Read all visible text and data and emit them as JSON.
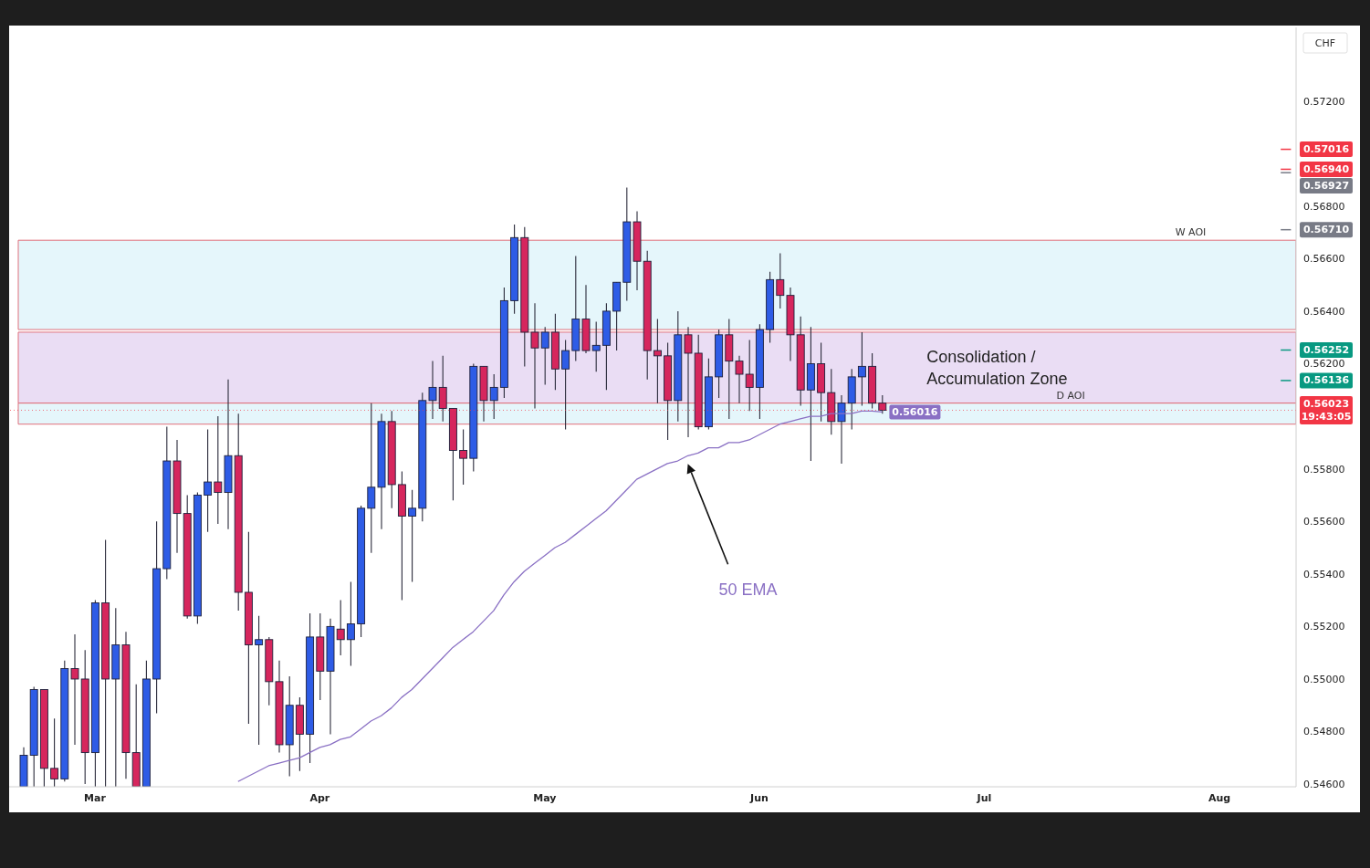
{
  "chart_data": {
    "type": "candlestick",
    "ylabel": "CHF",
    "categories": [
      null,
      null,
      null,
      null,
      null,
      null,
      null,
      "Mar",
      null,
      null,
      null,
      null,
      null,
      null,
      null,
      null,
      null,
      null,
      null,
      null,
      null,
      null,
      null,
      null,
      null,
      null,
      null,
      null,
      null,
      "Apr",
      null,
      null,
      null,
      null,
      null,
      null,
      null,
      null,
      null,
      null,
      null,
      null,
      null,
      null,
      null,
      null,
      null,
      null,
      null,
      null,
      null,
      "May",
      null,
      null,
      null,
      null,
      null,
      null,
      null,
      null,
      null,
      null,
      null,
      null,
      null,
      null,
      null,
      null,
      null,
      null,
      null,
      null,
      "Jun",
      null,
      null,
      null,
      null,
      null,
      null,
      null,
      null,
      null,
      null,
      null,
      null,
      null,
      null,
      null,
      null,
      null,
      null,
      null,
      null,
      null,
      "Jul",
      null,
      null,
      null,
      null,
      null,
      null,
      null,
      null,
      null,
      null,
      null,
      null,
      null,
      null,
      null,
      null,
      null,
      null,
      null,
      null,
      null,
      null,
      "Aug",
      null,
      null,
      null,
      null,
      null,
      null,
      null
    ],
    "ohlc": [
      [
        0.5459,
        0.5474,
        0.5459,
        0.5471
      ],
      [
        0.5471,
        0.5497,
        0.5459,
        0.5496
      ],
      [
        0.5496,
        0.5496,
        0.5459,
        0.5466
      ],
      [
        0.5466,
        0.5485,
        0.5459,
        0.5462
      ],
      [
        0.5462,
        0.5507,
        0.5461,
        0.5504
      ],
      [
        0.5504,
        0.5517,
        0.5475,
        0.55
      ],
      [
        0.55,
        0.5511,
        0.546,
        0.5472
      ],
      [
        0.5472,
        0.553,
        0.5459,
        0.5529
      ],
      [
        0.5529,
        0.5553,
        0.5459,
        0.55
      ],
      [
        0.55,
        0.5527,
        0.5459,
        0.5513
      ],
      [
        0.5513,
        0.5518,
        0.5462,
        0.5472
      ],
      [
        0.5472,
        0.5498,
        0.5459,
        0.5459
      ],
      [
        0.5459,
        0.5507,
        0.5459,
        0.55
      ],
      [
        0.55,
        0.556,
        0.5487,
        0.5542
      ],
      [
        0.5542,
        0.5596,
        0.5538,
        0.5583
      ],
      [
        0.5583,
        0.5591,
        0.5548,
        0.5563
      ],
      [
        0.5563,
        0.557,
        0.5523,
        0.5524
      ],
      [
        0.5524,
        0.5571,
        0.5521,
        0.557
      ],
      [
        0.557,
        0.5595,
        0.5556,
        0.5575
      ],
      [
        0.5575,
        0.56,
        0.5559,
        0.5571
      ],
      [
        0.5571,
        0.5614,
        0.5557,
        0.5585
      ],
      [
        0.5585,
        0.5601,
        0.5526,
        0.5533
      ],
      [
        0.5533,
        0.5556,
        0.5483,
        0.5513
      ],
      [
        0.5513,
        0.5524,
        0.5475,
        0.5515
      ],
      [
        0.5515,
        0.5516,
        0.549,
        0.5499
      ],
      [
        0.5499,
        0.5507,
        0.5472,
        0.5475
      ],
      [
        0.5475,
        0.5501,
        0.5463,
        0.549
      ],
      [
        0.549,
        0.5493,
        0.5465,
        0.5479
      ],
      [
        0.5479,
        0.5525,
        0.5468,
        0.5516
      ],
      [
        0.5516,
        0.5525,
        0.5492,
        0.5503
      ],
      [
        0.5503,
        0.5523,
        0.5479,
        0.552
      ],
      [
        0.5519,
        0.553,
        0.5509,
        0.5515
      ],
      [
        0.5515,
        0.5537,
        0.5505,
        0.5521
      ],
      [
        0.5521,
        0.5566,
        0.5516,
        0.5565
      ],
      [
        0.5565,
        0.5605,
        0.5548,
        0.5573
      ],
      [
        0.5573,
        0.5601,
        0.5557,
        0.5598
      ],
      [
        0.5598,
        0.5602,
        0.5565,
        0.5574
      ],
      [
        0.5574,
        0.5579,
        0.553,
        0.5562
      ],
      [
        0.5562,
        0.5572,
        0.5537,
        0.5565
      ],
      [
        0.5565,
        0.5609,
        0.556,
        0.5606
      ],
      [
        0.5606,
        0.5621,
        0.5599,
        0.5611
      ],
      [
        0.5611,
        0.5623,
        0.5598,
        0.5603
      ],
      [
        0.5603,
        0.5603,
        0.5568,
        0.5587
      ],
      [
        0.5587,
        0.5595,
        0.5574,
        0.5584
      ],
      [
        0.5584,
        0.562,
        0.5579,
        0.5619
      ],
      [
        0.5619,
        0.5619,
        0.5598,
        0.5606
      ],
      [
        0.5606,
        0.5616,
        0.5599,
        0.5611
      ],
      [
        0.5611,
        0.5649,
        0.5607,
        0.5644
      ],
      [
        0.5644,
        0.5673,
        0.5639,
        0.5668
      ],
      [
        0.5668,
        0.5672,
        0.5619,
        0.5632
      ],
      [
        0.5632,
        0.5643,
        0.5603,
        0.5626
      ],
      [
        0.5626,
        0.5634,
        0.5612,
        0.5632
      ],
      [
        0.5632,
        0.5639,
        0.561,
        0.5618
      ],
      [
        0.5618,
        0.5629,
        0.5595,
        0.5625
      ],
      [
        0.5625,
        0.5661,
        0.5621,
        0.5637
      ],
      [
        0.5637,
        0.565,
        0.5624,
        0.5625
      ],
      [
        0.5625,
        0.5636,
        0.5617,
        0.5627
      ],
      [
        0.5627,
        0.5643,
        0.561,
        0.564
      ],
      [
        0.564,
        0.5651,
        0.5625,
        0.5651
      ],
      [
        0.5651,
        0.5687,
        0.5644,
        0.5674
      ],
      [
        0.5674,
        0.5678,
        0.5648,
        0.5659
      ],
      [
        0.5659,
        0.5663,
        0.5614,
        0.5625
      ],
      [
        0.5625,
        0.5637,
        0.5605,
        0.5623
      ],
      [
        0.5623,
        0.5628,
        0.5591,
        0.5606
      ],
      [
        0.5606,
        0.564,
        0.5598,
        0.5631
      ],
      [
        0.5631,
        0.5634,
        0.5592,
        0.5624
      ],
      [
        0.5624,
        0.5631,
        0.5595,
        0.5596
      ],
      [
        0.5596,
        0.5622,
        0.5595,
        0.5615
      ],
      [
        0.5615,
        0.5633,
        0.5607,
        0.5631
      ],
      [
        0.5631,
        0.5637,
        0.5599,
        0.5621
      ],
      [
        0.5621,
        0.5623,
        0.5605,
        0.5616
      ],
      [
        0.5616,
        0.5629,
        0.5602,
        0.5611
      ],
      [
        0.5611,
        0.5635,
        0.5599,
        0.5633
      ],
      [
        0.5633,
        0.5655,
        0.5628,
        0.5652
      ],
      [
        0.5652,
        0.5662,
        0.5641,
        0.5646
      ],
      [
        0.5646,
        0.5649,
        0.5621,
        0.5631
      ],
      [
        0.5631,
        0.5638,
        0.5604,
        0.561
      ],
      [
        0.561,
        0.5634,
        0.5583,
        0.562
      ],
      [
        0.562,
        0.5628,
        0.5598,
        0.5609
      ],
      [
        0.5609,
        0.5618,
        0.5593,
        0.5598
      ],
      [
        0.5598,
        0.5608,
        0.5582,
        0.5605
      ],
      [
        0.5605,
        0.5618,
        0.5595,
        0.5615
      ],
      [
        0.5615,
        0.5632,
        0.5604,
        0.5619
      ],
      [
        0.5619,
        0.5624,
        0.5603,
        0.5605
      ],
      [
        0.5605,
        0.5608,
        0.5601,
        0.56023
      ],
      null,
      null,
      null,
      null,
      null,
      null,
      null,
      null,
      null,
      null,
      null,
      null,
      null,
      null,
      null,
      null,
      null,
      null,
      null,
      null,
      null,
      null,
      null,
      null,
      null,
      null,
      null,
      null,
      null,
      null,
      null,
      null,
      null,
      null,
      null,
      null,
      null,
      null,
      null,
      null
    ],
    "colors": [
      "#2e5ce6",
      "#2e5ce6",
      "#d6265d",
      "#d6265d",
      "#2e5ce6",
      "#d6265d",
      "#d6265d",
      "#2e5ce6",
      "#d6265d",
      "#2e5ce6",
      "#d6265d",
      "#d6265d",
      "#2e5ce6",
      "#2e5ce6",
      "#2e5ce6",
      "#d6265d",
      "#d6265d",
      "#2e5ce6",
      "#2e5ce6",
      "#d6265d",
      "#2e5ce6",
      "#d6265d",
      "#d6265d",
      "#2e5ce6",
      "#d6265d",
      "#d6265d",
      "#2e5ce6",
      "#d6265d",
      "#2e5ce6",
      "#d6265d",
      "#2e5ce6",
      "#d6265d",
      "#2e5ce6",
      "#2e5ce6",
      "#2e5ce6",
      "#2e5ce6",
      "#d6265d",
      "#d6265d",
      "#2e5ce6",
      "#2e5ce6",
      "#2e5ce6",
      "#d6265d",
      "#d6265d",
      "#d6265d",
      "#2e5ce6",
      "#d6265d",
      "#2e5ce6",
      "#2e5ce6",
      "#2e5ce6",
      "#d6265d",
      "#d6265d",
      "#2e5ce6",
      "#d6265d",
      "#2e5ce6",
      "#2e5ce6",
      "#d6265d",
      "#2e5ce6",
      "#2e5ce6",
      "#2e5ce6",
      "#2e5ce6",
      "#d6265d",
      "#d6265d",
      "#d6265d",
      "#d6265d",
      "#2e5ce6",
      "#d6265d",
      "#d6265d",
      "#2e5ce6",
      "#2e5ce6",
      "#d6265d",
      "#d6265d",
      "#d6265d",
      "#2e5ce6",
      "#2e5ce6",
      "#d6265d",
      "#d6265d",
      "#d6265d",
      "#2e5ce6",
      "#d6265d",
      "#d6265d",
      "#2e5ce6",
      "#2e5ce6",
      "#2e5ce6",
      "#d6265d",
      "#d6265d",
      null,
      null,
      null,
      null,
      null,
      null,
      null,
      null,
      null,
      null,
      null,
      null,
      null,
      null,
      null,
      null,
      null,
      null,
      null,
      null,
      null,
      null,
      null,
      null,
      null,
      null,
      null,
      null,
      null,
      null,
      null,
      null,
      null,
      null,
      null,
      null,
      null,
      null,
      null,
      null
    ],
    "series": [
      {
        "type": "line",
        "name": "50 EMA",
        "color": "#8a70c4",
        "values": [
          null,
          null,
          null,
          null,
          null,
          null,
          null,
          null,
          null,
          null,
          null,
          null,
          null,
          null,
          null,
          null,
          null,
          null,
          null,
          null,
          null,
          0.5461,
          0.5463,
          0.5465,
          0.5467,
          0.5468,
          0.5469,
          0.547,
          0.5472,
          0.5474,
          0.5475,
          0.5477,
          0.5478,
          0.5481,
          0.5484,
          0.5486,
          0.5489,
          0.5493,
          0.5496,
          0.55,
          0.5504,
          0.5508,
          0.5512,
          0.5515,
          0.5518,
          0.5522,
          0.5526,
          0.5532,
          0.5537,
          0.5541,
          0.5544,
          0.5547,
          0.555,
          0.5552,
          0.5555,
          0.5558,
          0.5561,
          0.5564,
          0.5568,
          0.5572,
          0.5576,
          0.5578,
          0.558,
          0.5582,
          0.5583,
          0.5585,
          0.5586,
          0.5588,
          0.5588,
          0.559,
          0.559,
          0.5591,
          0.5593,
          0.5595,
          0.5597,
          0.5598,
          0.5599,
          0.56,
          0.56,
          0.5601,
          0.5601,
          0.5601,
          0.5602,
          0.5602,
          0.56016,
          null,
          null,
          null,
          null,
          null,
          null,
          null,
          null,
          null,
          null,
          null,
          null,
          null,
          null,
          null,
          null,
          null,
          null,
          null,
          null,
          null,
          null,
          null,
          null,
          null,
          null,
          null,
          null,
          null,
          null,
          null,
          null,
          null,
          null,
          null,
          null,
          null,
          null,
          null,
          null
        ],
        "value_labels": [
          null,
          null,
          null,
          null,
          null,
          null,
          null,
          null,
          null,
          null,
          null,
          null,
          null,
          null,
          null,
          null,
          null,
          null,
          null,
          null,
          null,
          null,
          null,
          null,
          null,
          null,
          null,
          null,
          null,
          null,
          null,
          null,
          null,
          null,
          null,
          null,
          null,
          null,
          null,
          null,
          null,
          null,
          null,
          null,
          null,
          null,
          null,
          null,
          null,
          null,
          null,
          null,
          null,
          null,
          null,
          null,
          null,
          null,
          null,
          null,
          null,
          null,
          null,
          null,
          null,
          null,
          null,
          null,
          null,
          null,
          null,
          null,
          null,
          null,
          null,
          null,
          null,
          null,
          null,
          null,
          null,
          null,
          null,
          null,
          "0.56016",
          null,
          null,
          null,
          null,
          null,
          null,
          null,
          null,
          null,
          null,
          null,
          null,
          null,
          null,
          null,
          null,
          null,
          null,
          null,
          null,
          null,
          null,
          null,
          null,
          null,
          null,
          null,
          null,
          null,
          null,
          null,
          null,
          null,
          null,
          null,
          null,
          null,
          null,
          null,
          null
        ]
      }
    ],
    "ylim": [
      0.5459,
      0.5748
    ],
    "yticks": [
      {
        "value": 0.546,
        "label": "0.54600"
      },
      {
        "value": 0.548,
        "label": "0.54800"
      },
      {
        "value": 0.55,
        "label": "0.55000"
      },
      {
        "value": 0.552,
        "label": "0.55200"
      },
      {
        "value": 0.554,
        "label": "0.55400"
      },
      {
        "value": 0.556,
        "label": "0.55600"
      },
      {
        "value": 0.558,
        "label": "0.55800"
      },
      {
        "value": 0.562,
        "label": "0.56200"
      },
      {
        "value": 0.564,
        "label": "0.56400"
      },
      {
        "value": 0.566,
        "label": "0.56600"
      },
      {
        "value": 0.568,
        "label": "0.56800"
      },
      {
        "value": 0.572,
        "label": "0.57200"
      }
    ],
    "bands": [
      {
        "axis": "y",
        "from": 0.5633,
        "to": 0.5667,
        "label": "W AOI",
        "color": "#e0f5fa"
      },
      {
        "axis": "y",
        "from": 0.5605,
        "to": 0.5632,
        "label": "Consolidation / Accumulation Zone",
        "color": "#e6d7f2"
      },
      {
        "axis": "y",
        "from": 0.5597,
        "to": 0.5605,
        "label": "D AOI",
        "color": "#e0f5fa"
      }
    ],
    "ref_lines": [
      {
        "axis": "y",
        "value": 0.57016,
        "label": "0.57016",
        "color": "#f23645"
      },
      {
        "axis": "y",
        "value": 0.5694,
        "label": "0.56940",
        "color": "#f23645"
      },
      {
        "axis": "y",
        "value": 0.56927,
        "label": "0.56927",
        "color": "#787b86"
      },
      {
        "axis": "y",
        "value": 0.5671,
        "label": "0.56710",
        "color": "#787b86"
      },
      {
        "axis": "y",
        "value": 0.56252,
        "label": "0.56252",
        "color": "#089981"
      },
      {
        "axis": "y",
        "value": 0.56136,
        "label": "0.56136",
        "color": "#089981"
      },
      {
        "axis": "y",
        "value": 0.56023,
        "label": "0.56023\n19:43:05",
        "color": "#f23645",
        "line_style": "dotted"
      }
    ]
  }
}
